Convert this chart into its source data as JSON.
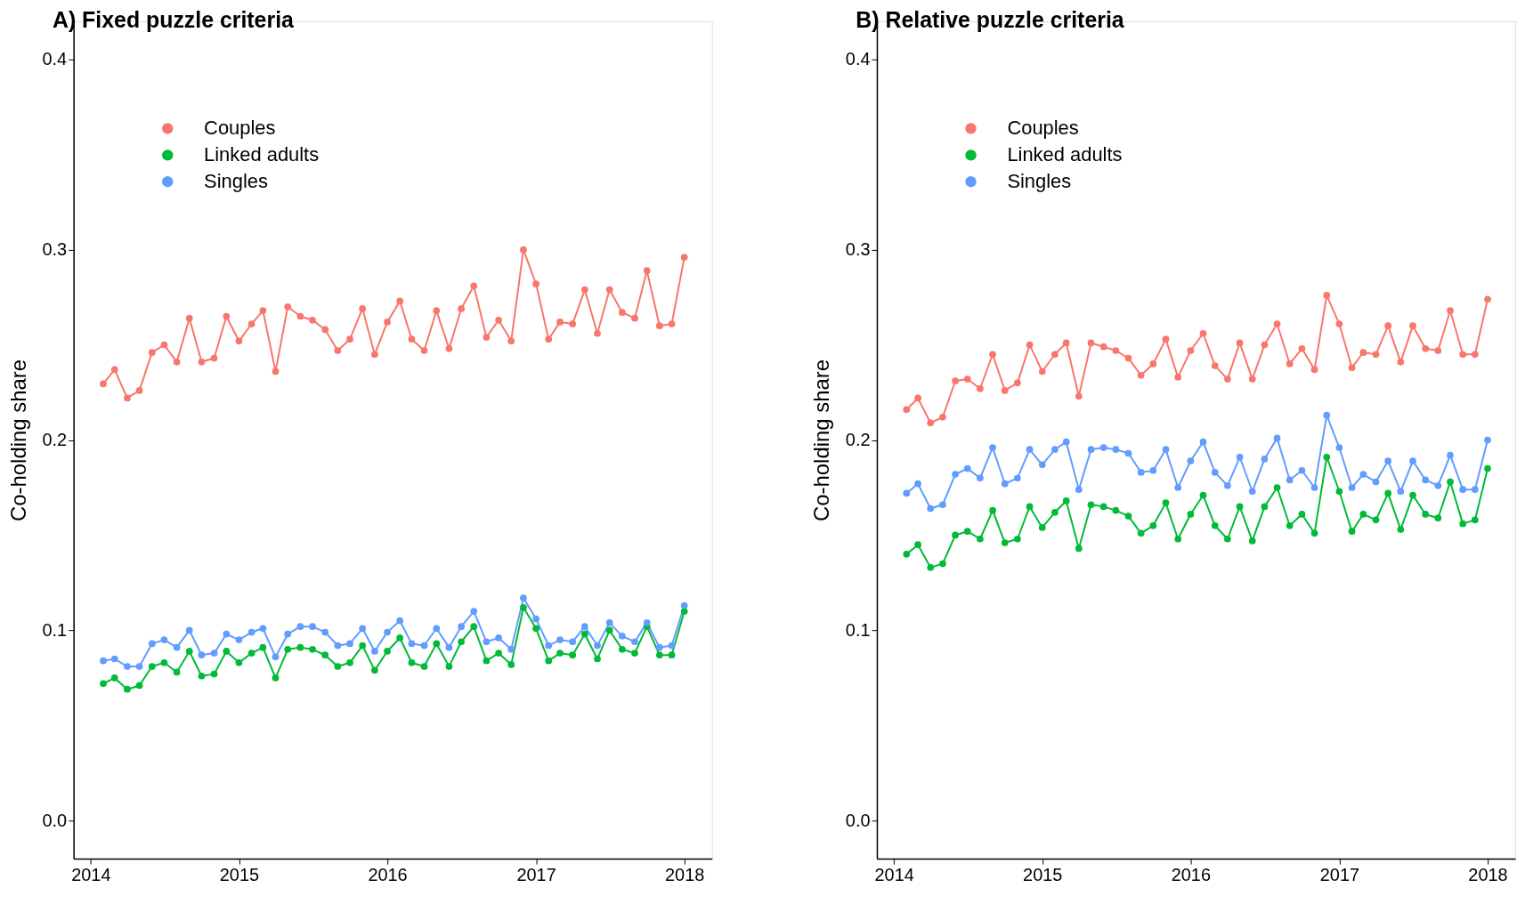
{
  "chart_data": [
    {
      "type": "line",
      "title": "A) Fixed puzzle criteria",
      "ylabel": "Co-holding share",
      "x": [
        "2014-02",
        "2014-03",
        "2014-04",
        "2014-05",
        "2014-06",
        "2014-07",
        "2014-08",
        "2014-09",
        "2014-10",
        "2014-11",
        "2014-12",
        "2015-01",
        "2015-02",
        "2015-03",
        "2015-04",
        "2015-05",
        "2015-06",
        "2015-07",
        "2015-08",
        "2015-09",
        "2015-10",
        "2015-11",
        "2015-12",
        "2016-01",
        "2016-02",
        "2016-03",
        "2016-04",
        "2016-05",
        "2016-06",
        "2016-07",
        "2016-08",
        "2016-09",
        "2016-10",
        "2016-11",
        "2016-12",
        "2017-01",
        "2017-02",
        "2017-03",
        "2017-04",
        "2017-05",
        "2017-06",
        "2017-07",
        "2017-08",
        "2017-09",
        "2017-10",
        "2017-11",
        "2017-12",
        "2018-01"
      ],
      "series": [
        {
          "name": "Couples",
          "color": "#f8766d",
          "values": [
            0.2295,
            0.237,
            0.222,
            0.226,
            0.246,
            0.25,
            0.241,
            0.264,
            0.241,
            0.243,
            0.265,
            0.252,
            0.261,
            0.268,
            0.236,
            0.27,
            0.265,
            0.263,
            0.258,
            0.247,
            0.253,
            0.269,
            0.245,
            0.262,
            0.273,
            0.253,
            0.247,
            0.268,
            0.248,
            0.269,
            0.281,
            0.254,
            0.263,
            0.252,
            0.3,
            0.282,
            0.253,
            0.262,
            0.261,
            0.279,
            0.256,
            0.279,
            0.267,
            0.264,
            0.289,
            0.26,
            0.261,
            0.296
          ]
        },
        {
          "name": "Linked adults",
          "color": "#00ba38",
          "values": [
            0.072,
            0.075,
            0.069,
            0.071,
            0.081,
            0.083,
            0.078,
            0.089,
            0.076,
            0.077,
            0.089,
            0.083,
            0.088,
            0.091,
            0.075,
            0.09,
            0.091,
            0.09,
            0.087,
            0.081,
            0.083,
            0.092,
            0.079,
            0.089,
            0.096,
            0.083,
            0.081,
            0.093,
            0.081,
            0.094,
            0.102,
            0.084,
            0.088,
            0.082,
            0.112,
            0.101,
            0.084,
            0.088,
            0.087,
            0.098,
            0.085,
            0.1,
            0.09,
            0.088,
            0.102,
            0.087,
            0.087,
            0.11
          ]
        },
        {
          "name": "Singles",
          "color": "#619cff",
          "values": [
            0.084,
            0.085,
            0.081,
            0.081,
            0.093,
            0.095,
            0.091,
            0.1,
            0.087,
            0.088,
            0.098,
            0.095,
            0.099,
            0.101,
            0.086,
            0.098,
            0.102,
            0.102,
            0.099,
            0.092,
            0.093,
            0.101,
            0.089,
            0.099,
            0.105,
            0.093,
            0.092,
            0.101,
            0.091,
            0.102,
            0.11,
            0.094,
            0.096,
            0.09,
            0.117,
            0.106,
            0.092,
            0.095,
            0.094,
            0.102,
            0.092,
            0.104,
            0.097,
            0.094,
            0.104,
            0.091,
            0.092,
            0.113
          ]
        }
      ],
      "xlim": [
        "2013-11-20",
        "2018-03-10"
      ],
      "xticks": [
        {
          "value": "2014-01-01",
          "label": "2014"
        },
        {
          "value": "2015-01-01",
          "label": "2015"
        },
        {
          "value": "2016-01-01",
          "label": "2016"
        },
        {
          "value": "2017-01-01",
          "label": "2017"
        },
        {
          "value": "2018-01-01",
          "label": "2018"
        }
      ],
      "ylim": [
        -0.02,
        0.42
      ],
      "yticks": [
        {
          "value": 0,
          "label": "0.0"
        },
        0.1,
        0.2,
        0.3,
        0.4
      ],
      "grid": false,
      "legend": "top left",
      "marker": "circle",
      "line_style": "solid"
    },
    {
      "type": "line",
      "title": "B) Relative puzzle criteria",
      "ylabel": "Co-holding share",
      "x": [
        "2014-02",
        "2014-03",
        "2014-04",
        "2014-05",
        "2014-06",
        "2014-07",
        "2014-08",
        "2014-09",
        "2014-10",
        "2014-11",
        "2014-12",
        "2015-01",
        "2015-02",
        "2015-03",
        "2015-04",
        "2015-05",
        "2015-06",
        "2015-07",
        "2015-08",
        "2015-09",
        "2015-10",
        "2015-11",
        "2015-12",
        "2016-01",
        "2016-02",
        "2016-03",
        "2016-04",
        "2016-05",
        "2016-06",
        "2016-07",
        "2016-08",
        "2016-09",
        "2016-10",
        "2016-11",
        "2016-12",
        "2017-01",
        "2017-02",
        "2017-03",
        "2017-04",
        "2017-05",
        "2017-06",
        "2017-07",
        "2017-08",
        "2017-09",
        "2017-10",
        "2017-11",
        "2017-12",
        "2018-01"
      ],
      "series": [
        {
          "name": "Couples",
          "color": "#f8766d",
          "values": [
            0.216,
            0.222,
            0.209,
            0.212,
            0.231,
            0.232,
            0.227,
            0.245,
            0.226,
            0.23,
            0.25,
            0.236,
            0.245,
            0.251,
            0.223,
            0.251,
            0.249,
            0.247,
            0.243,
            0.234,
            0.24,
            0.253,
            0.233,
            0.247,
            0.256,
            0.239,
            0.232,
            0.251,
            0.232,
            0.25,
            0.261,
            0.24,
            0.248,
            0.237,
            0.276,
            0.261,
            0.238,
            0.246,
            0.245,
            0.26,
            0.241,
            0.26,
            0.248,
            0.247,
            0.268,
            0.245,
            0.245,
            0.274
          ]
        },
        {
          "name": "Linked adults",
          "color": "#00ba38",
          "values": [
            0.14,
            0.145,
            0.133,
            0.135,
            0.15,
            0.152,
            0.148,
            0.163,
            0.146,
            0.148,
            0.165,
            0.154,
            0.162,
            0.168,
            0.143,
            0.166,
            0.165,
            0.163,
            0.16,
            0.151,
            0.155,
            0.167,
            0.148,
            0.161,
            0.171,
            0.155,
            0.148,
            0.165,
            0.147,
            0.165,
            0.175,
            0.155,
            0.161,
            0.151,
            0.191,
            0.173,
            0.152,
            0.161,
            0.158,
            0.172,
            0.153,
            0.171,
            0.161,
            0.159,
            0.178,
            0.156,
            0.158,
            0.185
          ]
        },
        {
          "name": "Singles",
          "color": "#619cff",
          "values": [
            0.172,
            0.177,
            0.164,
            0.166,
            0.182,
            0.185,
            0.18,
            0.196,
            0.177,
            0.18,
            0.195,
            0.187,
            0.195,
            0.199,
            0.174,
            0.195,
            0.196,
            0.195,
            0.193,
            0.183,
            0.184,
            0.195,
            0.175,
            0.189,
            0.199,
            0.183,
            0.176,
            0.191,
            0.173,
            0.19,
            0.201,
            0.179,
            0.184,
            0.175,
            0.213,
            0.196,
            0.175,
            0.182,
            0.178,
            0.189,
            0.173,
            0.189,
            0.179,
            0.176,
            0.192,
            0.174,
            0.174,
            0.2
          ]
        }
      ],
      "xlim": [
        "2013-11-20",
        "2018-03-10"
      ],
      "xticks": [
        {
          "value": "2014-01-01",
          "label": "2014"
        },
        {
          "value": "2015-01-01",
          "label": "2015"
        },
        {
          "value": "2016-01-01",
          "label": "2016"
        },
        {
          "value": "2017-01-01",
          "label": "2017"
        },
        {
          "value": "2018-01-01",
          "label": "2018"
        }
      ],
      "ylim": [
        -0.02,
        0.42
      ],
      "yticks": [
        {
          "value": 0,
          "label": "0.0"
        },
        0.1,
        0.2,
        0.3,
        0.4
      ],
      "grid": false,
      "legend": "top left",
      "marker": "circle",
      "line_style": "solid"
    }
  ]
}
